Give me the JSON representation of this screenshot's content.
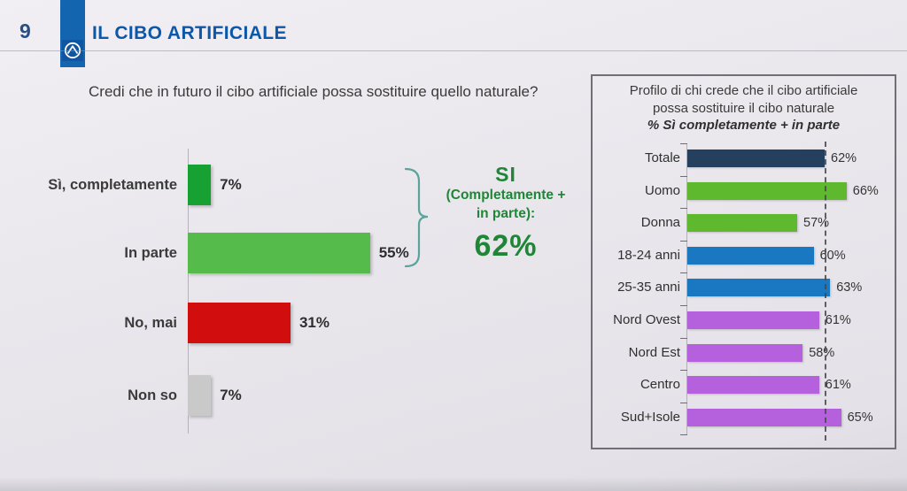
{
  "slide": {
    "number": "9",
    "title": "IL CIBO ARTIFICIALE"
  },
  "question": "Credi che in futuro il cibo artificiale possa sostituire quello naturale?",
  "annotation": {
    "heading": "SI",
    "sub1": "(Completamente +",
    "sub2": "in parte):",
    "value": "62%",
    "color": "#1e8636",
    "brace_color": "#5aa49c"
  },
  "chart_data": [
    {
      "type": "bar",
      "orientation": "horizontal",
      "title": "Credi che in futuro il cibo artificiale possa sostituire quello naturale?",
      "categories": [
        "Sì, completamente",
        "In parte",
        "No, mai",
        "Non so"
      ],
      "values": [
        7,
        55,
        31,
        7
      ],
      "value_labels": [
        "7%",
        "55%",
        "31%",
        "7%"
      ],
      "colors": [
        "#18a133",
        "#55bb4a",
        "#d10d0d",
        "#c9c9c9"
      ],
      "xlim": [
        0,
        60
      ],
      "grid": false,
      "legend": false
    },
    {
      "type": "bar",
      "orientation": "horizontal",
      "title_lines": [
        "Profilo di chi crede che il cibo artificiale",
        "possa sostituire il cibo naturale",
        "% Sì completamente + in parte"
      ],
      "categories": [
        "Totale",
        "Uomo",
        "Donna",
        "18-24 anni",
        "25-35 anni",
        "Nord Ovest",
        "Nord Est",
        "Centro",
        "Sud+Isole"
      ],
      "values": [
        62,
        66,
        57,
        60,
        63,
        61,
        58,
        61,
        65
      ],
      "value_labels": [
        "62%",
        "66%",
        "57%",
        "60%",
        "63%",
        "61%",
        "58%",
        "61%",
        "65%"
      ],
      "colors": [
        "#24405e",
        "#5eb92e",
        "#5eb92e",
        "#1a78c2",
        "#1a78c2",
        "#b561dd",
        "#b561dd",
        "#b561dd",
        "#b561dd"
      ],
      "xlim": [
        37,
        70
      ],
      "reference_line": 62,
      "grid": false,
      "legend": false
    }
  ]
}
